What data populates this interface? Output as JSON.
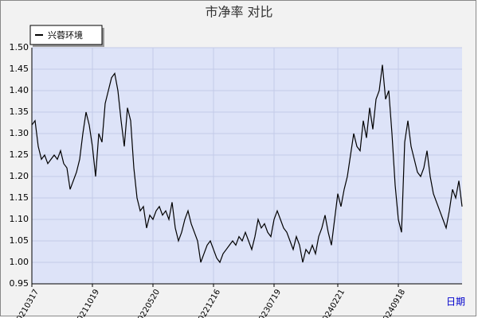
{
  "chart_data": {
    "type": "line",
    "title": "市净率  对比",
    "x_label": "日期",
    "categories": [
      "20210317",
      null,
      null,
      null,
      null,
      null,
      null,
      null,
      null,
      null,
      null,
      null,
      null,
      null,
      null,
      null,
      null,
      null,
      null,
      "20211019",
      null,
      null,
      null,
      null,
      null,
      null,
      null,
      null,
      null,
      null,
      null,
      null,
      null,
      null,
      null,
      null,
      null,
      null,
      "20220520",
      null,
      null,
      null,
      null,
      null,
      null,
      null,
      null,
      null,
      null,
      null,
      null,
      null,
      null,
      null,
      null,
      null,
      null,
      "20221216",
      null,
      null,
      null,
      null,
      null,
      null,
      null,
      null,
      null,
      null,
      null,
      null,
      null,
      null,
      null,
      null,
      null,
      null,
      "20230719",
      null,
      null,
      null,
      null,
      null,
      null,
      null,
      null,
      null,
      null,
      null,
      null,
      null,
      null,
      null,
      null,
      null,
      null,
      null,
      "20240221",
      null,
      null,
      null,
      null,
      null,
      null,
      null,
      null,
      null,
      null,
      null,
      null,
      null,
      null,
      null,
      null,
      null,
      null,
      "20240918",
      null,
      null,
      null,
      null,
      null,
      null,
      null,
      null,
      null,
      null,
      null,
      null,
      null,
      null,
      null,
      null,
      null,
      null,
      null,
      null
    ],
    "series": [
      {
        "name": "兴蓉环境",
        "color": "#000000",
        "values": [
          1.32,
          1.33,
          1.27,
          1.24,
          1.25,
          1.23,
          1.24,
          1.25,
          1.24,
          1.26,
          1.23,
          1.22,
          1.17,
          1.19,
          1.21,
          1.24,
          1.3,
          1.35,
          1.32,
          1.27,
          1.2,
          1.3,
          1.28,
          1.37,
          1.4,
          1.43,
          1.44,
          1.4,
          1.33,
          1.27,
          1.36,
          1.33,
          1.22,
          1.15,
          1.12,
          1.13,
          1.08,
          1.11,
          1.1,
          1.12,
          1.13,
          1.11,
          1.12,
          1.1,
          1.14,
          1.08,
          1.05,
          1.07,
          1.1,
          1.12,
          1.09,
          1.07,
          1.05,
          1.0,
          1.02,
          1.04,
          1.05,
          1.03,
          1.01,
          1.0,
          1.02,
          1.03,
          1.04,
          1.05,
          1.04,
          1.06,
          1.05,
          1.07,
          1.05,
          1.03,
          1.06,
          1.1,
          1.08,
          1.09,
          1.07,
          1.06,
          1.1,
          1.12,
          1.1,
          1.08,
          1.07,
          1.05,
          1.03,
          1.06,
          1.04,
          1.0,
          1.03,
          1.02,
          1.04,
          1.02,
          1.06,
          1.08,
          1.11,
          1.07,
          1.04,
          1.1,
          1.16,
          1.13,
          1.17,
          1.2,
          1.25,
          1.3,
          1.27,
          1.26,
          1.33,
          1.29,
          1.36,
          1.31,
          1.38,
          1.4,
          1.46,
          1.38,
          1.4,
          1.3,
          1.18,
          1.1,
          1.07,
          1.28,
          1.33,
          1.27,
          1.24,
          1.21,
          1.2,
          1.22,
          1.26,
          1.2,
          1.16,
          1.14,
          1.12,
          1.1,
          1.08,
          1.12,
          1.17,
          1.15,
          1.19,
          1.13
        ]
      }
    ],
    "ylim": [
      0.95,
      1.5
    ],
    "yticks": [
      {
        "value": 0.95,
        "label": "0.95"
      },
      {
        "value": 1.0,
        "label": "1.00"
      },
      {
        "value": 1.05,
        "label": "1.05"
      },
      {
        "value": 1.1,
        "label": "1.10"
      },
      {
        "value": 1.15,
        "label": "1.15"
      },
      {
        "value": 1.2,
        "label": "1.20"
      },
      {
        "value": 1.25,
        "label": "1.25"
      },
      {
        "value": 1.3,
        "label": "1.30"
      },
      {
        "value": 1.35,
        "label": "1.35"
      },
      {
        "value": 1.4,
        "label": "1.40"
      },
      {
        "value": 1.45,
        "label": "1.45"
      },
      {
        "value": 1.5,
        "label": "1.50"
      }
    ],
    "grid": true,
    "legend": "top-left"
  }
}
